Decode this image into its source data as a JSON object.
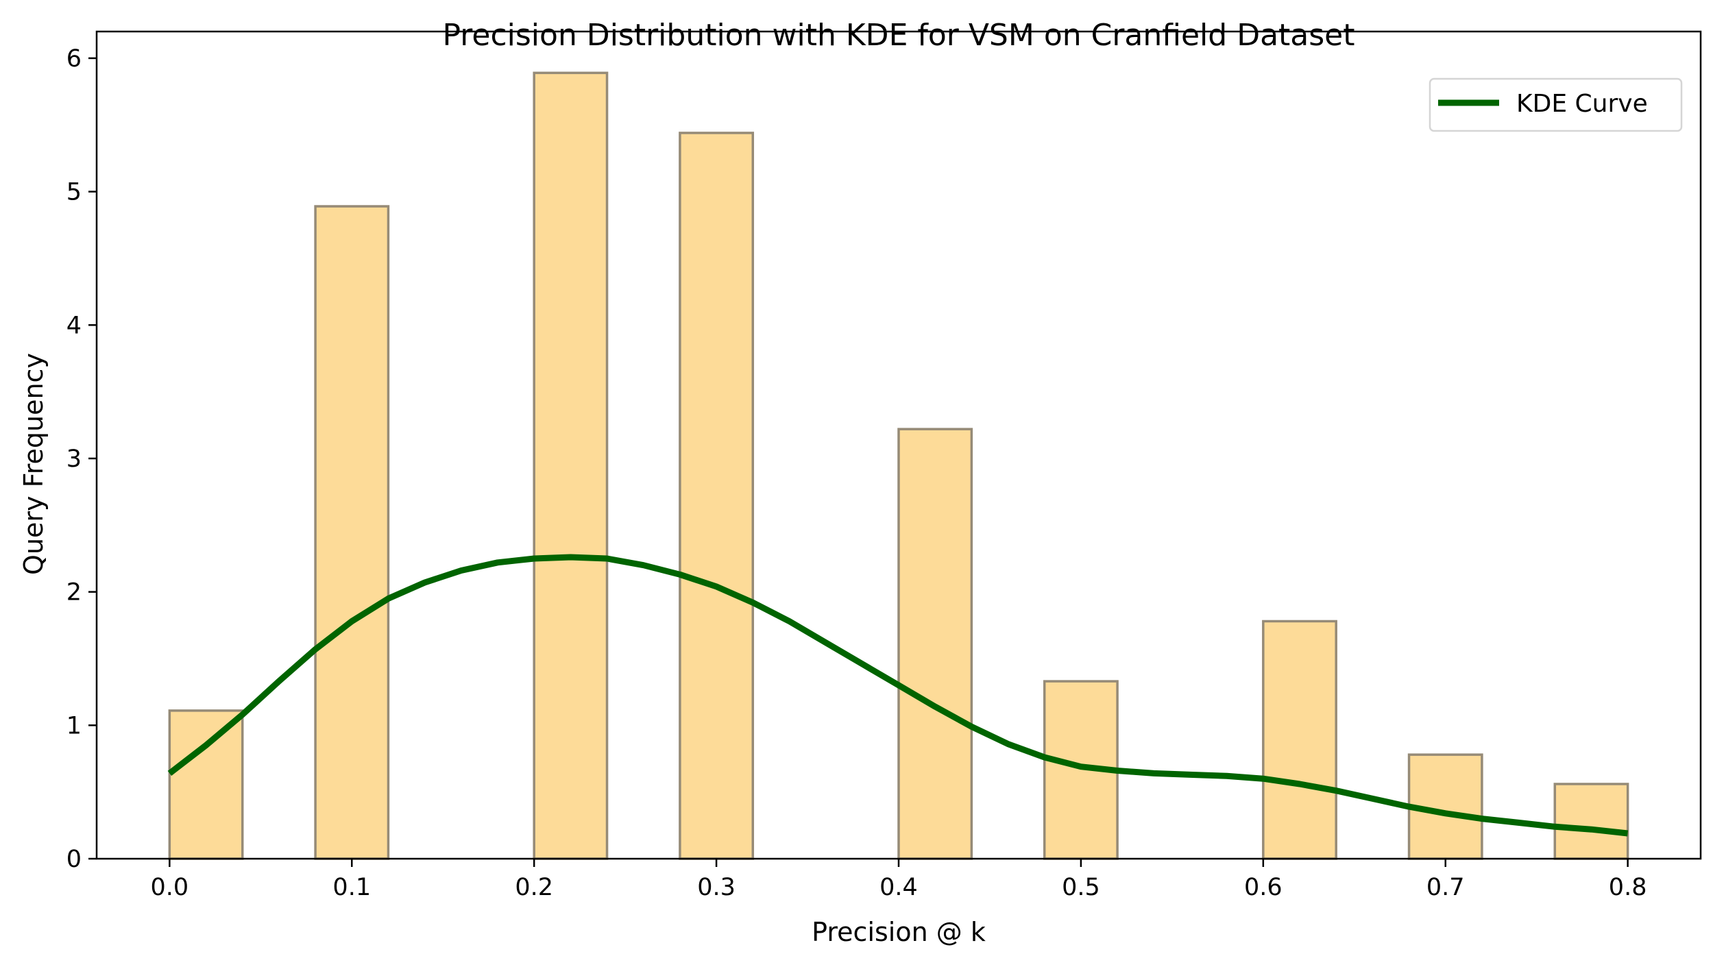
{
  "chart_data": {
    "type": "bar",
    "title": "Precision Distribution with KDE for VSM on Cranfield Dataset",
    "xlabel": "Precision @ k",
    "ylabel": "Query Frequency",
    "xlim": [
      -0.04,
      0.84
    ],
    "ylim": [
      0,
      6.2
    ],
    "bin_width": 0.04,
    "bars": [
      {
        "x_start": 0.0,
        "value": 1.11
      },
      {
        "x_start": 0.08,
        "value": 4.89
      },
      {
        "x_start": 0.2,
        "value": 5.89
      },
      {
        "x_start": 0.28,
        "value": 5.44
      },
      {
        "x_start": 0.4,
        "value": 3.22
      },
      {
        "x_start": 0.48,
        "value": 1.33
      },
      {
        "x_start": 0.6,
        "value": 1.78
      },
      {
        "x_start": 0.68,
        "value": 0.78
      },
      {
        "x_start": 0.76,
        "value": 0.56
      }
    ],
    "xticks": [
      {
        "value": 0.0,
        "label": "0.0"
      },
      {
        "value": 0.1,
        "label": "0.1"
      },
      {
        "value": 0.2,
        "label": "0.2"
      },
      {
        "value": 0.3,
        "label": "0.3"
      },
      {
        "value": 0.4,
        "label": "0.4"
      },
      {
        "value": 0.5,
        "label": "0.5"
      },
      {
        "value": 0.6,
        "label": "0.6"
      },
      {
        "value": 0.7,
        "label": "0.7"
      },
      {
        "value": 0.8,
        "label": "0.8"
      }
    ],
    "yticks": [
      {
        "value": 0,
        "label": "0"
      },
      {
        "value": 1,
        "label": "1"
      },
      {
        "value": 2,
        "label": "2"
      },
      {
        "value": 3,
        "label": "3"
      },
      {
        "value": 4,
        "label": "4"
      },
      {
        "value": 5,
        "label": "5"
      },
      {
        "value": 6,
        "label": "6"
      }
    ],
    "series": [
      {
        "name": "KDE Curve",
        "type": "line",
        "x": [
          0.0,
          0.02,
          0.04,
          0.06,
          0.08,
          0.1,
          0.12,
          0.14,
          0.16,
          0.18,
          0.2,
          0.22,
          0.24,
          0.26,
          0.28,
          0.3,
          0.32,
          0.34,
          0.36,
          0.38,
          0.4,
          0.42,
          0.44,
          0.46,
          0.48,
          0.5,
          0.52,
          0.54,
          0.56,
          0.58,
          0.6,
          0.62,
          0.64,
          0.66,
          0.68,
          0.7,
          0.72,
          0.74,
          0.76,
          0.78,
          0.8
        ],
        "y": [
          0.64,
          0.85,
          1.08,
          1.33,
          1.57,
          1.78,
          1.95,
          2.07,
          2.16,
          2.22,
          2.25,
          2.26,
          2.25,
          2.2,
          2.13,
          2.04,
          1.92,
          1.78,
          1.62,
          1.46,
          1.3,
          1.14,
          0.99,
          0.86,
          0.76,
          0.69,
          0.66,
          0.64,
          0.63,
          0.62,
          0.6,
          0.56,
          0.51,
          0.45,
          0.39,
          0.34,
          0.3,
          0.27,
          0.24,
          0.22,
          0.19
        ]
      }
    ],
    "legend": {
      "position": "top-right"
    },
    "grid": false,
    "colors": {
      "bar_fill": "#fddb98",
      "bar_edge": "#968b77",
      "kde_line": "#006400",
      "axis": "#000000",
      "legend_border": "#d5d5d5"
    }
  }
}
